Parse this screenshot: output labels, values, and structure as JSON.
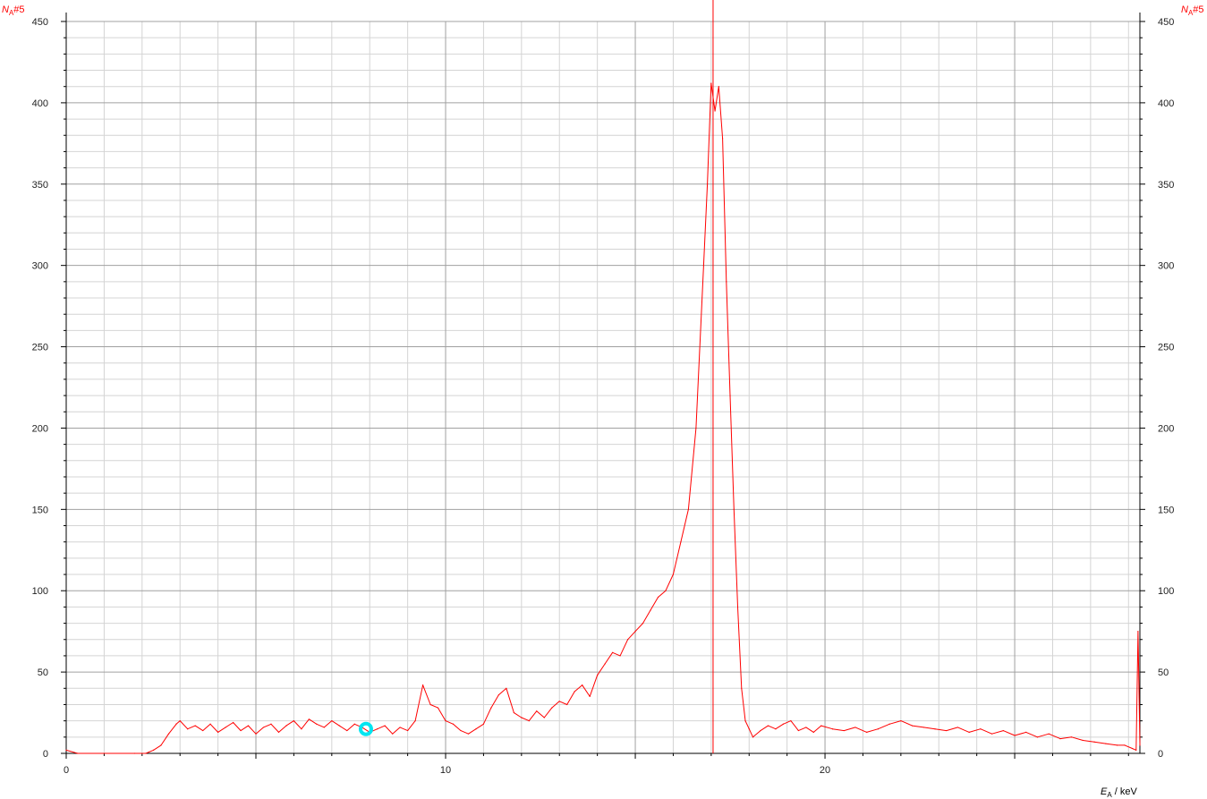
{
  "chart_data": {
    "type": "line",
    "title": "",
    "ylabel_main": "N",
    "ylabel_sub": "A",
    "ylabel_suffix": "#5",
    "xlabel_main": "E",
    "xlabel_sub": "A",
    "xlabel_suffix": " / keV",
    "xlim": [
      0,
      28.3
    ],
    "ylim": [
      0,
      450
    ],
    "x_ticks": [
      "0",
      "10",
      "20"
    ],
    "y_ticks": [
      "0",
      "50",
      "100",
      "150",
      "200",
      "250",
      "300",
      "350",
      "400",
      "450"
    ],
    "grid": true,
    "marker_line_x": 17.05,
    "cursor_point": {
      "x": 7.9,
      "y": 15
    },
    "colors": {
      "series": "#ff0000",
      "grid_major": "#a0a0a0",
      "grid_minor": "#d4d4d4",
      "axis_title": "#ff0000",
      "cursor": "#00e5f0"
    },
    "series": [
      {
        "x": [
          0,
          0.3,
          1.8,
          2.1,
          2.3,
          2.5,
          2.7,
          2.9,
          3.0,
          3.2,
          3.4,
          3.6,
          3.8,
          4.0,
          4.2,
          4.4,
          4.6,
          4.8,
          5.0,
          5.2,
          5.4,
          5.6,
          5.8,
          6.0,
          6.2,
          6.4,
          6.6,
          6.8,
          7.0,
          7.2,
          7.4,
          7.6,
          7.8,
          8.0,
          8.2,
          8.4,
          8.6,
          8.8,
          9.0,
          9.2,
          9.4,
          9.6,
          9.8,
          10.0,
          10.2,
          10.4,
          10.6,
          10.8,
          11.0,
          11.2,
          11.4,
          11.6,
          11.8,
          12.0,
          12.2,
          12.4,
          12.6,
          12.8,
          13.0,
          13.2,
          13.4,
          13.6,
          13.8,
          14.0,
          14.2,
          14.4,
          14.6,
          14.8,
          15.0,
          15.2,
          15.4,
          15.6,
          15.8,
          16.0,
          16.2,
          16.4,
          16.6,
          16.8,
          16.9,
          17.0,
          17.1,
          17.2,
          17.3,
          17.4,
          17.5,
          17.6,
          17.7,
          17.8,
          17.9,
          18.0,
          18.1,
          18.3,
          18.5,
          18.7,
          18.9,
          19.1,
          19.3,
          19.5,
          19.7,
          19.9,
          20.2,
          20.5,
          20.8,
          21.1,
          21.4,
          21.7,
          22.0,
          22.3,
          22.6,
          22.9,
          23.2,
          23.5,
          23.8,
          24.1,
          24.4,
          24.7,
          25.0,
          25.3,
          25.6,
          25.9,
          26.2,
          26.5,
          26.8,
          27.1,
          27.4,
          27.7,
          27.9,
          28.1,
          28.2,
          28.25,
          28.3
        ],
        "y": [
          2,
          0,
          0,
          0,
          2,
          5,
          12,
          18,
          20,
          15,
          17,
          14,
          18,
          13,
          16,
          19,
          14,
          17,
          12,
          16,
          18,
          13,
          17,
          20,
          15,
          21,
          18,
          16,
          20,
          17,
          14,
          18,
          16,
          13,
          15,
          17,
          12,
          16,
          14,
          20,
          42,
          30,
          28,
          20,
          18,
          14,
          12,
          15,
          18,
          28,
          36,
          40,
          25,
          22,
          20,
          26,
          22,
          28,
          32,
          30,
          38,
          42,
          35,
          48,
          55,
          62,
          60,
          70,
          75,
          80,
          88,
          96,
          100,
          110,
          130,
          150,
          200,
          300,
          350,
          412,
          395,
          410,
          378,
          290,
          220,
          150,
          90,
          40,
          20,
          15,
          10,
          14,
          17,
          15,
          18,
          20,
          14,
          16,
          13,
          17,
          15,
          14,
          16,
          13,
          15,
          18,
          20,
          17,
          16,
          15,
          14,
          16,
          13,
          15,
          12,
          14,
          11,
          13,
          10,
          12,
          9,
          10,
          8,
          7,
          6,
          5,
          5,
          3,
          2,
          75,
          5
        ]
      }
    ]
  }
}
